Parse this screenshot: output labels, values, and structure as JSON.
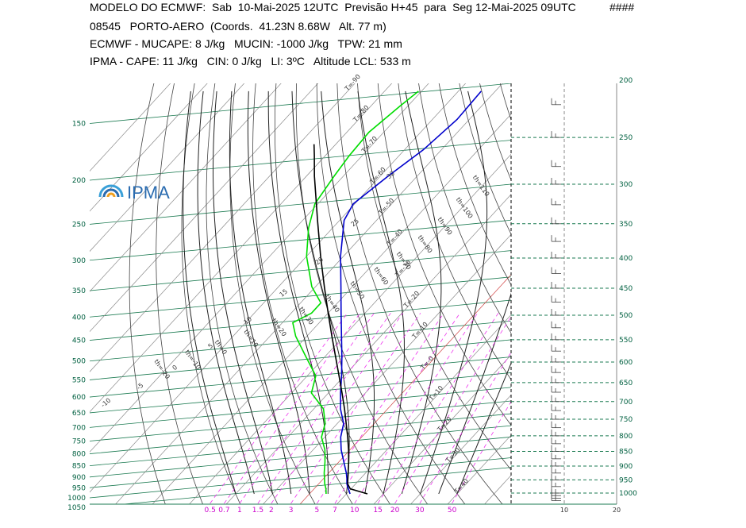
{
  "header": {
    "line1": "MODELO DO ECMWF:  Sab  10-Mai-2025 12UTC  Previsão H+45  para  Seg 12-Mai-2025 09UTC",
    "flag": "####",
    "line2": "08545   PORTO-AERO  (Coords.  41.23N 8.68W   Alt. 77 m)",
    "line3": "ECMWF - MUCAPE: 8 J/kg   MUCIN: -1000 J/kg   TPW: 21 mm",
    "line4": "IPMA - CAPE: 11 J/kg   CIN: 0 J/kg   LI: 3ºC   Altitude LCL: 533 m"
  },
  "logo": {
    "text": "IPMA",
    "color": "#2b6cb0"
  },
  "chart_data": {
    "type": "line",
    "title": "",
    "pressure_levels_left": [
      "150",
      "200",
      "250",
      "300",
      "350",
      "400",
      "450",
      "500",
      "550",
      "600",
      "650",
      "700",
      "750",
      "800",
      "850",
      "900",
      "950",
      "1000",
      "1050"
    ],
    "pressure_levels_right": [
      "200",
      "250",
      "300",
      "350",
      "400",
      "450",
      "500",
      "550",
      "600",
      "650",
      "700",
      "750",
      "800",
      "850",
      "900",
      "950",
      "1000"
    ],
    "mixing_ratio_ticks": [
      "0.5",
      "0.7",
      "1",
      "1.5",
      "2",
      "3",
      "5",
      "7",
      "10",
      "15",
      "20",
      "30",
      "50"
    ],
    "wind_axis_ticks": [
      "10",
      "20"
    ],
    "isotherm_labels": [
      "T=-90",
      "T=-80",
      "T=-70",
      "T=-60",
      "T=-50",
      "T=-40",
      "T=-30",
      "T=-20",
      "T=-10",
      "T=-0",
      "T=10",
      "T=20",
      "T=30",
      "T=40"
    ],
    "theta_labels": [
      "th=-20",
      "th=-10",
      "th=0",
      "th=10",
      "th=20",
      "th=30",
      "th=40",
      "th=50",
      "th=60",
      "th=70",
      "th=80",
      "th=90",
      "th=100",
      "th=110"
    ],
    "theta_e_labels": [
      "-10",
      "-5",
      "0",
      "5",
      "10",
      "15",
      "20",
      "25",
      "30"
    ],
    "series": [
      {
        "name": "",
        "color": "#0000cc",
        "points": [
          {
            "p": 1000,
            "t": 11.0
          },
          {
            "p": 975,
            "t": 9.3
          },
          {
            "p": 950,
            "t": 7.6
          },
          {
            "p": 925,
            "t": 6.3
          },
          {
            "p": 900,
            "t": 4.8
          },
          {
            "p": 850,
            "t": 1.3
          },
          {
            "p": 800,
            "t": -2.4
          },
          {
            "p": 750,
            "t": -5.7
          },
          {
            "p": 700,
            "t": -8.3
          },
          {
            "p": 650,
            "t": -12.8
          },
          {
            "p": 600,
            "t": -16.7
          },
          {
            "p": 550,
            "t": -20.7
          },
          {
            "p": 500,
            "t": -25.3
          },
          {
            "p": 450,
            "t": -30.6
          },
          {
            "p": 400,
            "t": -36.5
          },
          {
            "p": 350,
            "t": -43.1
          },
          {
            "p": 300,
            "t": -50.8
          },
          {
            "p": 250,
            "t": -58.8
          },
          {
            "p": 230,
            "t": -60.4
          },
          {
            "p": 200,
            "t": -57.9
          },
          {
            "p": 175,
            "t": -54.9
          },
          {
            "p": 150,
            "t": -53.3
          },
          {
            "p": 130,
            "t": -53.8
          }
        ]
      },
      {
        "name": "",
        "color": "#00dd00",
        "points": [
          {
            "p": 1000,
            "t": 4.5
          },
          {
            "p": 975,
            "t": 3.2
          },
          {
            "p": 950,
            "t": 1.6
          },
          {
            "p": 900,
            "t": -1.2
          },
          {
            "p": 850,
            "t": -3.8
          },
          {
            "p": 800,
            "t": -6.8
          },
          {
            "p": 750,
            "t": -10.9
          },
          {
            "p": 700,
            "t": -13.3
          },
          {
            "p": 650,
            "t": -17.4
          },
          {
            "p": 600,
            "t": -24.6
          },
          {
            "p": 550,
            "t": -27.7
          },
          {
            "p": 500,
            "t": -35.0
          },
          {
            "p": 450,
            "t": -43.0
          },
          {
            "p": 420,
            "t": -47.2
          },
          {
            "p": 400,
            "t": -44.5
          },
          {
            "p": 380,
            "t": -44.5
          },
          {
            "p": 350,
            "t": -51.0
          },
          {
            "p": 300,
            "t": -60.0
          },
          {
            "p": 260,
            "t": -66.5
          },
          {
            "p": 230,
            "t": -70.8
          },
          {
            "p": 200,
            "t": -72.5
          },
          {
            "p": 180,
            "t": -73.5
          },
          {
            "p": 160,
            "t": -74.0
          },
          {
            "p": 140,
            "t": -72.1
          },
          {
            "p": 130,
            "t": -70.8
          }
        ]
      },
      {
        "name": "",
        "color": "#000000",
        "points": [
          {
            "p": 1000,
            "t": 15.7
          },
          {
            "p": 975,
            "t": 9.8
          },
          {
            "p": 950,
            "t": 7.8
          },
          {
            "p": 900,
            "t": 5.3
          },
          {
            "p": 850,
            "t": 2.6
          },
          {
            "p": 800,
            "t": -0.4
          },
          {
            "p": 750,
            "t": -3.8
          },
          {
            "p": 700,
            "t": -7.6
          },
          {
            "p": 650,
            "t": -11.7
          },
          {
            "p": 600,
            "t": -16.3
          },
          {
            "p": 550,
            "t": -21.4
          },
          {
            "p": 500,
            "t": -27.0
          },
          {
            "p": 450,
            "t": -33.2
          },
          {
            "p": 400,
            "t": -40.0
          },
          {
            "p": 350,
            "t": -47.6
          },
          {
            "p": 300,
            "t": -56.2
          },
          {
            "p": 250,
            "t": -66.0
          },
          {
            "p": 200,
            "t": -77.8
          },
          {
            "p": 180,
            "t": -83.0
          },
          {
            "p": 170,
            "t": -85.9
          }
        ]
      }
    ],
    "wind_barbs_pressure": [
      200,
      220,
      250,
      280,
      300,
      325,
      350,
      375,
      400,
      425,
      450,
      475,
      500,
      525,
      550,
      575,
      600,
      625,
      650,
      675,
      700,
      725,
      750,
      775,
      800,
      825,
      850,
      875,
      900,
      925,
      950,
      975,
      1000,
      1010,
      1020,
      1030
    ],
    "xlabel": "",
    "ylabel": "",
    "grid": true,
    "legend": "none"
  }
}
